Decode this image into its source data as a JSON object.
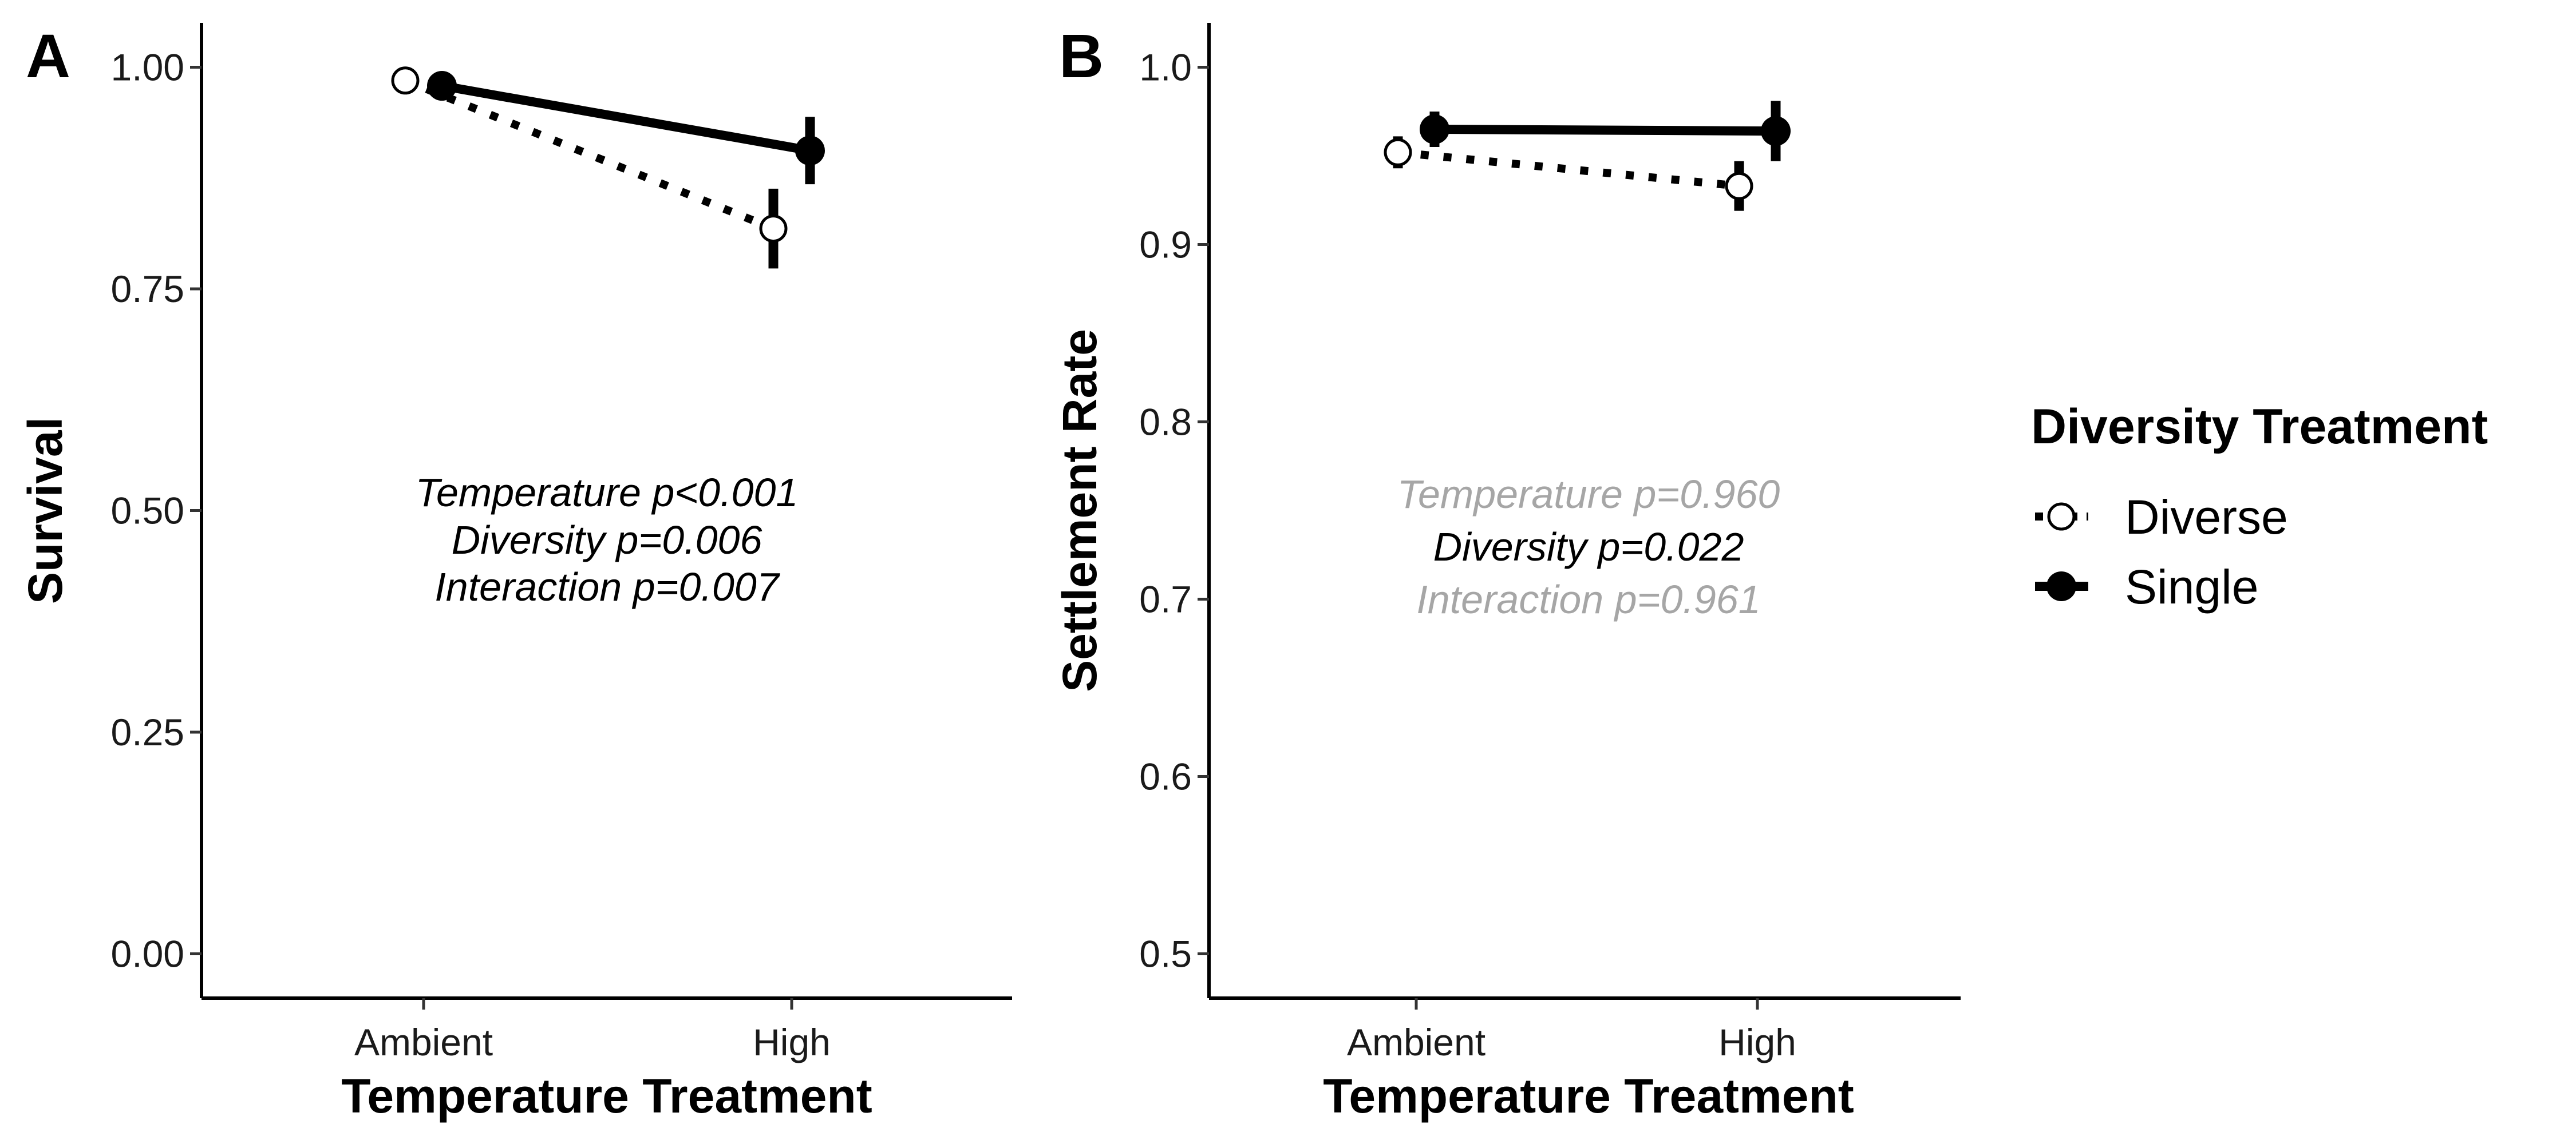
{
  "chart_data": [
    {
      "type": "line",
      "panel_tag": "A",
      "xlabel": "Temperature Treatment",
      "ylabel": "Survival",
      "categories": [
        "Ambient",
        "High"
      ],
      "ylim": [
        -0.05,
        1.05
      ],
      "yticks": [
        0,
        0.25,
        0.5,
        0.75,
        1.0
      ],
      "ytick_labels": [
        "0.00",
        "0.25",
        "0.50",
        "0.75",
        "1.00"
      ],
      "grid": false,
      "series": [
        {
          "name": "Diverse",
          "values": [
            0.985,
            0.818
          ],
          "error": [
            0.004,
            0.045
          ],
          "line": "dotted",
          "marker": "open-circle"
        },
        {
          "name": "Single",
          "values": [
            0.979,
            0.906
          ],
          "error": [
            0.006,
            0.038
          ],
          "line": "solid",
          "marker": "filled-circle"
        }
      ],
      "annotations": [
        {
          "text": "Temperature p<0.001",
          "color": "#000000"
        },
        {
          "text": "Diversity p=0.006",
          "color": "#000000"
        },
        {
          "text": "Interaction p=0.007",
          "color": "#000000"
        }
      ]
    },
    {
      "type": "line",
      "panel_tag": "B",
      "xlabel": "Temperature Treatment",
      "ylabel": "Settlement Rate",
      "categories": [
        "Ambient",
        "High"
      ],
      "ylim": [
        0.475,
        1.025
      ],
      "yticks": [
        0.5,
        0.6,
        0.7,
        0.8,
        0.9,
        1.0
      ],
      "ytick_labels": [
        "0.5",
        "0.6",
        "0.7",
        "0.8",
        "0.9",
        "1.0"
      ],
      "grid": false,
      "series": [
        {
          "name": "Diverse",
          "values": [
            0.952,
            0.933
          ],
          "error": [
            0.009,
            0.014
          ],
          "line": "dotted",
          "marker": "open-circle"
        },
        {
          "name": "Single",
          "values": [
            0.965,
            0.964
          ],
          "error": [
            0.01,
            0.017
          ],
          "line": "solid",
          "marker": "filled-circle"
        }
      ],
      "annotations": [
        {
          "text": "Temperature p=0.960",
          "color": "#a6a6a6"
        },
        {
          "text": "Diversity p=0.022",
          "color": "#000000"
        },
        {
          "text": "Interaction p=0.961",
          "color": "#a6a6a6"
        }
      ]
    }
  ],
  "legend": {
    "title": "Diversity Treatment",
    "placement": "right",
    "items": [
      {
        "label": "Diverse",
        "line": "dotted",
        "marker": "open-circle"
      },
      {
        "label": "Single",
        "line": "solid",
        "marker": "filled-circle"
      }
    ]
  }
}
